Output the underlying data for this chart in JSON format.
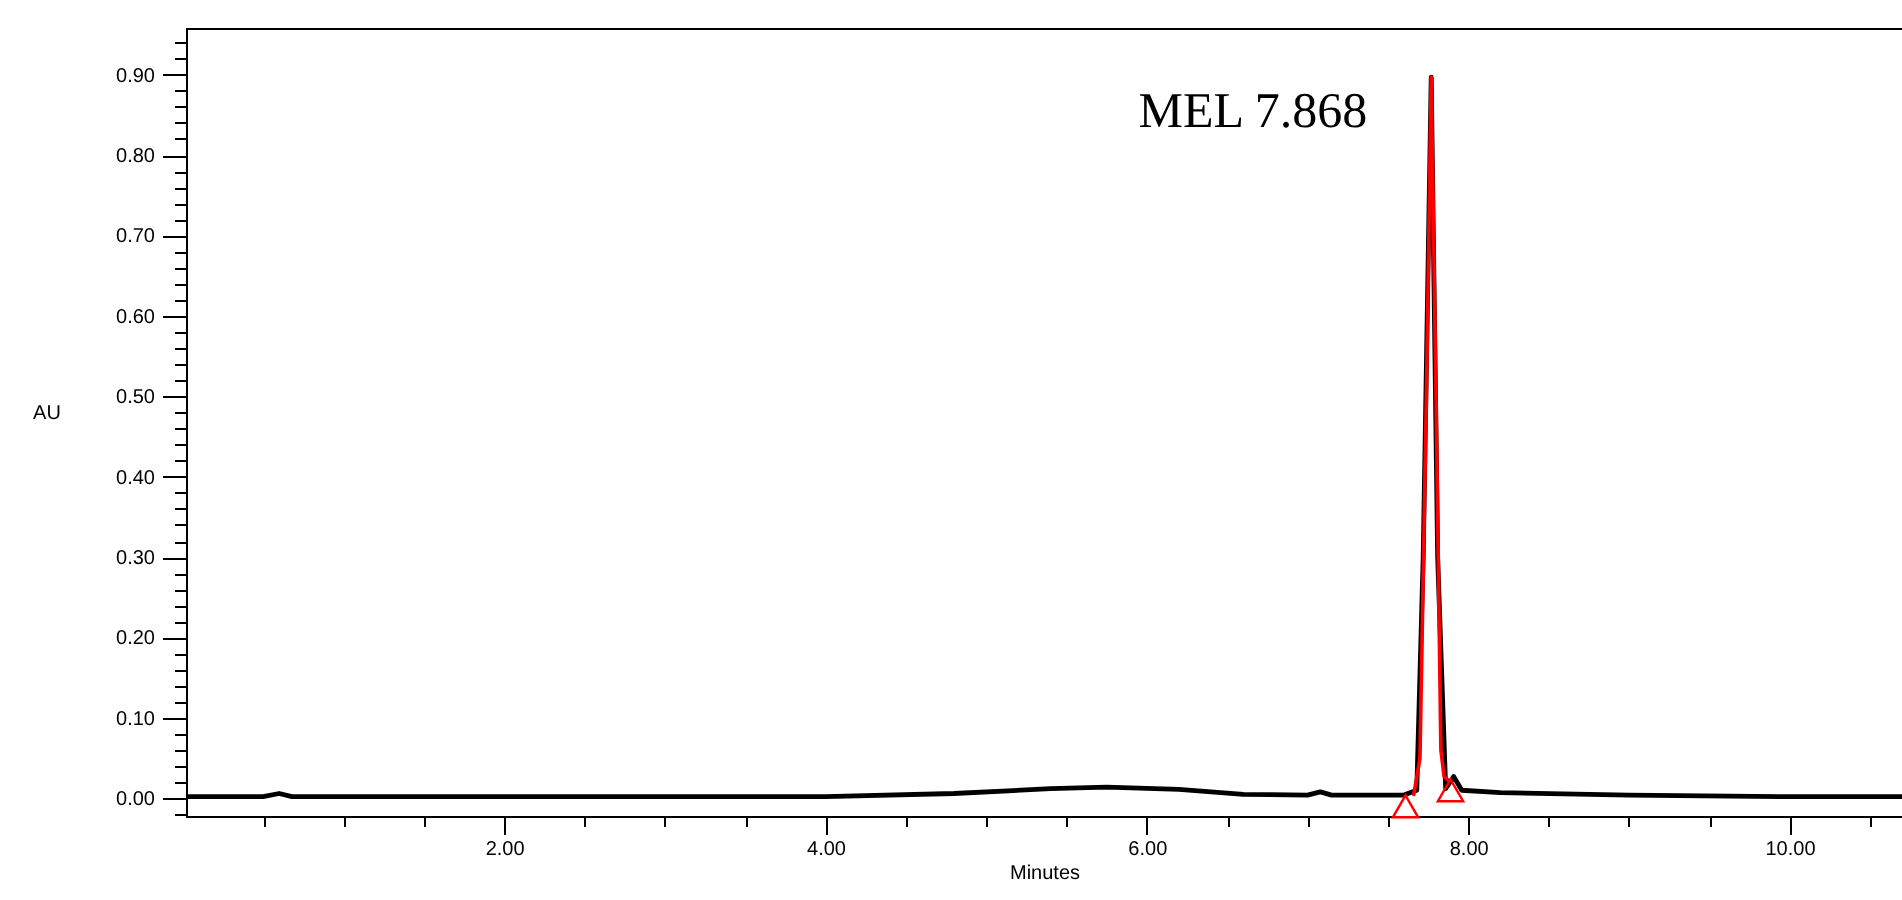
{
  "chart_data": {
    "type": "line",
    "xlabel": "Minutes",
    "ylabel": "AU",
    "xlim": [
      0.02,
      10.7
    ],
    "ylim": [
      -0.022,
      0.958
    ],
    "xticks": [
      {
        "value": 0.5,
        "label": null
      },
      {
        "value": 1,
        "label": null
      },
      {
        "value": 1.5,
        "label": null
      },
      {
        "value": 2,
        "label": "2.00"
      },
      {
        "value": 2.5,
        "label": null
      },
      {
        "value": 3,
        "label": null
      },
      {
        "value": 3.5,
        "label": null
      },
      {
        "value": 4,
        "label": "4.00"
      },
      {
        "value": 4.5,
        "label": null
      },
      {
        "value": 5,
        "label": null
      },
      {
        "value": 5.5,
        "label": null
      },
      {
        "value": 6,
        "label": "6.00"
      },
      {
        "value": 6.5,
        "label": null
      },
      {
        "value": 7,
        "label": null
      },
      {
        "value": 7.5,
        "label": null
      },
      {
        "value": 8,
        "label": "8.00"
      },
      {
        "value": 8.5,
        "label": null
      },
      {
        "value": 9,
        "label": null
      },
      {
        "value": 9.5,
        "label": null
      },
      {
        "value": 10,
        "label": "10.00"
      },
      {
        "value": 10.5,
        "label": null
      }
    ],
    "yticks": [
      {
        "value": -0.02,
        "label": null
      },
      {
        "value": 0,
        "label": "0.00"
      },
      {
        "value": 0.02,
        "label": null
      },
      {
        "value": 0.04,
        "label": null
      },
      {
        "value": 0.06,
        "label": null
      },
      {
        "value": 0.08,
        "label": null
      },
      {
        "value": 0.1,
        "label": "0.10"
      },
      {
        "value": 0.12,
        "label": null
      },
      {
        "value": 0.14,
        "label": null
      },
      {
        "value": 0.16,
        "label": null
      },
      {
        "value": 0.18,
        "label": null
      },
      {
        "value": 0.2,
        "label": "0.20"
      },
      {
        "value": 0.22,
        "label": null
      },
      {
        "value": 0.24,
        "label": null
      },
      {
        "value": 0.26,
        "label": null
      },
      {
        "value": 0.28,
        "label": null
      },
      {
        "value": 0.3,
        "label": "0.30"
      },
      {
        "value": 0.32,
        "label": null
      },
      {
        "value": 0.34,
        "label": null
      },
      {
        "value": 0.36,
        "label": null
      },
      {
        "value": 0.38,
        "label": null
      },
      {
        "value": 0.4,
        "label": "0.40"
      },
      {
        "value": 0.42,
        "label": null
      },
      {
        "value": 0.44,
        "label": null
      },
      {
        "value": 0.46,
        "label": null
      },
      {
        "value": 0.48,
        "label": null
      },
      {
        "value": 0.5,
        "label": "0.50"
      },
      {
        "value": 0.52,
        "label": null
      },
      {
        "value": 0.54,
        "label": null
      },
      {
        "value": 0.56,
        "label": null
      },
      {
        "value": 0.58,
        "label": null
      },
      {
        "value": 0.6,
        "label": "0.60"
      },
      {
        "value": 0.62,
        "label": null
      },
      {
        "value": 0.64,
        "label": null
      },
      {
        "value": 0.66,
        "label": null
      },
      {
        "value": 0.68,
        "label": null
      },
      {
        "value": 0.7,
        "label": "0.70"
      },
      {
        "value": 0.72,
        "label": null
      },
      {
        "value": 0.74,
        "label": null
      },
      {
        "value": 0.76,
        "label": null
      },
      {
        "value": 0.78,
        "label": null
      },
      {
        "value": 0.8,
        "label": "0.80"
      },
      {
        "value": 0.82,
        "label": null
      },
      {
        "value": 0.84,
        "label": null
      },
      {
        "value": 0.86,
        "label": null
      },
      {
        "value": 0.88,
        "label": null
      },
      {
        "value": 0.9,
        "label": "0.90"
      },
      {
        "value": 0.92,
        "label": null
      },
      {
        "value": 0.94,
        "label": null
      }
    ],
    "grid": false,
    "series": [
      {
        "type": "line",
        "color": "#000000",
        "x": [
          0.02,
          0.5,
          0.6,
          0.68,
          2,
          4,
          4.8,
          5.4,
          5.75,
          6.2,
          6.6,
          7.0,
          7.08,
          7.15,
          7.6,
          7.68,
          7.72,
          7.77,
          7.81,
          7.86,
          7.91,
          7.96,
          8.2,
          9,
          10,
          10.7
        ],
        "values": [
          0.002,
          0.002,
          0.006,
          0.002,
          0.002,
          0.002,
          0.006,
          0.012,
          0.014,
          0.011,
          0.005,
          0.004,
          0.008,
          0.004,
          0.004,
          0.01,
          0.3,
          0.897,
          0.3,
          0.012,
          0.027,
          0.01,
          0.007,
          0.004,
          0.002,
          0.002
        ]
      },
      {
        "type": "line",
        "color": "#ff0000",
        "x": [
          7.66,
          7.7,
          7.74,
          7.77,
          7.8,
          7.83,
          7.85,
          7.89
        ],
        "values": [
          0.003,
          0.05,
          0.5,
          0.897,
          0.5,
          0.06,
          0.027,
          0.02
        ]
      },
      {
        "type": "scatter",
        "color": "#ff0000",
        "marker": "triangle",
        "x": [
          7.61,
          7.89
        ],
        "values": [
          -0.01,
          0.01
        ]
      }
    ],
    "annotations": [
      {
        "text": "MEL 7.868",
        "x": 7.77,
        "y": 0.897
      }
    ]
  }
}
